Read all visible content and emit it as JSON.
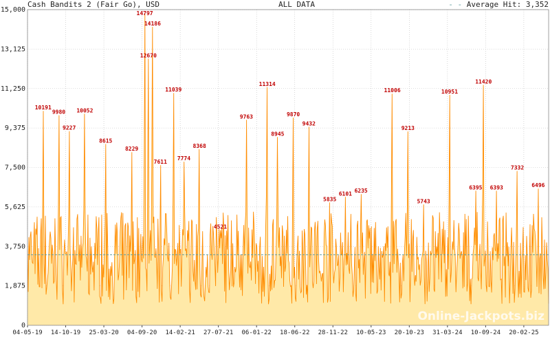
{
  "header": {
    "title": "Cash Bandits 2 (Fair Go), USD",
    "range": "ALL DATA",
    "avg_label": "Average Hit: 3,352"
  },
  "watermark": "Online-Jackpots.biz",
  "colors": {
    "line": "#ff8c00",
    "fill": "#ffe9a8",
    "label": "#c00000",
    "avg_line": "#5f9ea0",
    "grid": "#bbbbbb"
  },
  "chart_data": {
    "type": "line",
    "title": "Cash Bandits 2 (Fair Go), USD",
    "ylim": [
      0,
      15000
    ],
    "yticks": [
      0,
      1875,
      3750,
      5625,
      7500,
      9375,
      11250,
      13125,
      15000
    ],
    "ytick_labels": [
      "0",
      "1,875",
      "3,750",
      "5,625",
      "7,500",
      "9,375",
      "11,250",
      "13,125",
      "15,000"
    ],
    "xtick_labels": [
      "04-05-19",
      "14-10-19",
      "25-03-20",
      "04-09-20",
      "14-02-21",
      "27-07-21",
      "06-01-22",
      "18-06-22",
      "28-11-22",
      "10-05-23",
      "20-10-23",
      "31-03-24",
      "10-09-24",
      "20-02-25"
    ],
    "average": 3352,
    "grid": true,
    "legend": "top-right",
    "peaks": [
      {
        "pos": 0.03,
        "value": 10191
      },
      {
        "pos": 0.06,
        "value": 9980
      },
      {
        "pos": 0.08,
        "value": 9227
      },
      {
        "pos": 0.11,
        "value": 10052
      },
      {
        "pos": 0.15,
        "value": 8615
      },
      {
        "pos": 0.2,
        "value": 8229
      },
      {
        "pos": 0.225,
        "value": 14797
      },
      {
        "pos": 0.232,
        "value": 12670
      },
      {
        "pos": 0.24,
        "value": 14186
      },
      {
        "pos": 0.255,
        "value": 7611
      },
      {
        "pos": 0.28,
        "value": 11039
      },
      {
        "pos": 0.3,
        "value": 7774
      },
      {
        "pos": 0.33,
        "value": 8368
      },
      {
        "pos": 0.37,
        "value": 4521
      },
      {
        "pos": 0.42,
        "value": 9763
      },
      {
        "pos": 0.46,
        "value": 11314
      },
      {
        "pos": 0.48,
        "value": 8945
      },
      {
        "pos": 0.51,
        "value": 9870
      },
      {
        "pos": 0.54,
        "value": 9432
      },
      {
        "pos": 0.58,
        "value": 5835
      },
      {
        "pos": 0.61,
        "value": 6101
      },
      {
        "pos": 0.64,
        "value": 6235
      },
      {
        "pos": 0.7,
        "value": 11006
      },
      {
        "pos": 0.73,
        "value": 9213
      },
      {
        "pos": 0.76,
        "value": 5743
      },
      {
        "pos": 0.81,
        "value": 10951
      },
      {
        "pos": 0.86,
        "value": 6395
      },
      {
        "pos": 0.875,
        "value": 11420
      },
      {
        "pos": 0.9,
        "value": 6393
      },
      {
        "pos": 0.94,
        "value": 7332
      },
      {
        "pos": 0.98,
        "value": 6496
      }
    ]
  }
}
